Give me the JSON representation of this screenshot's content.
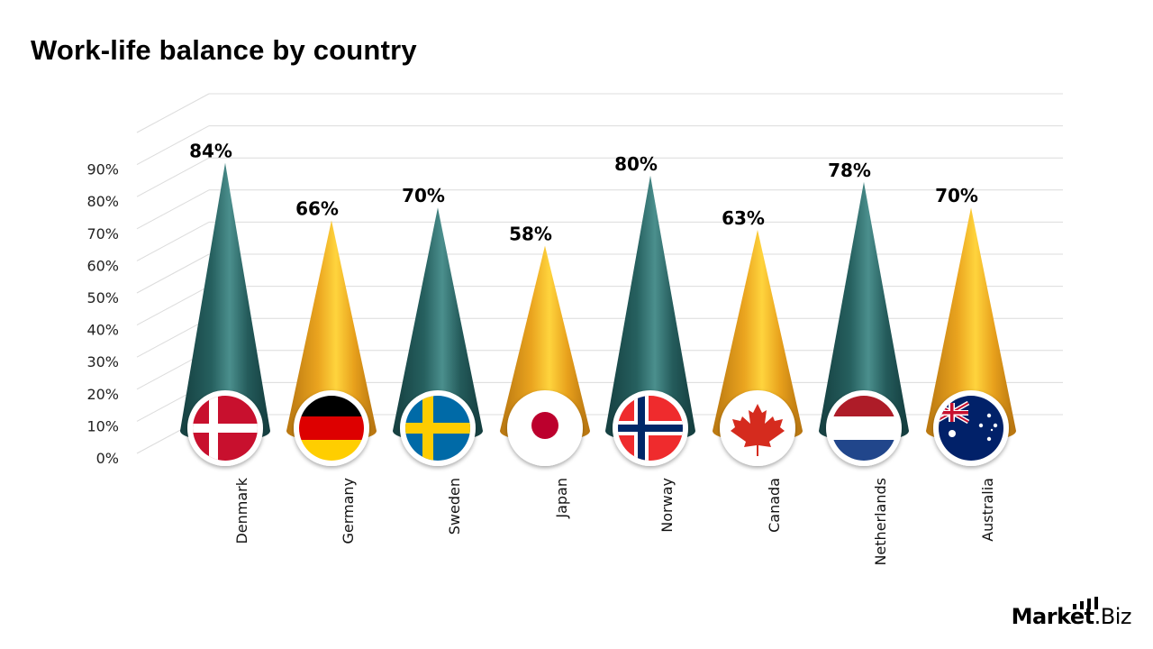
{
  "title": "Work-life balance by country",
  "logo": {
    "text_bold": "Market",
    "text_light": ".Biz"
  },
  "colors": {
    "teal": "#1f5a5a",
    "teal_highlight": "#4a8e8c",
    "gold": "#e9a21c",
    "gold_highlight": "#ffd23a",
    "grid": "#dcdcdc"
  },
  "chart_data": {
    "type": "bar",
    "subtype": "3d-cone",
    "title": "Work-life balance by country",
    "xlabel": "",
    "ylabel": "",
    "ylim": [
      0,
      90
    ],
    "y_ticks": [
      "0%",
      "10%",
      "20%",
      "30%",
      "40%",
      "50%",
      "60%",
      "70%",
      "80%",
      "90%"
    ],
    "grid": true,
    "legend": "none",
    "categories": [
      "Denmark",
      "Germany",
      "Sweden",
      "Japan",
      "Norway",
      "Canada",
      "Netherlands",
      "Australia"
    ],
    "values": [
      84,
      66,
      70,
      58,
      80,
      63,
      78,
      70
    ],
    "value_labels": [
      "84%",
      "66%",
      "70%",
      "58%",
      "80%",
      "63%",
      "78%",
      "70%"
    ],
    "bar_colors": [
      "teal",
      "gold",
      "teal",
      "gold",
      "teal",
      "gold",
      "teal",
      "gold"
    ],
    "flags": [
      "denmark-flag",
      "germany-flag",
      "sweden-flag",
      "japan-flag",
      "norway-flag",
      "canada-flag",
      "netherlands-flag",
      "australia-flag"
    ]
  }
}
